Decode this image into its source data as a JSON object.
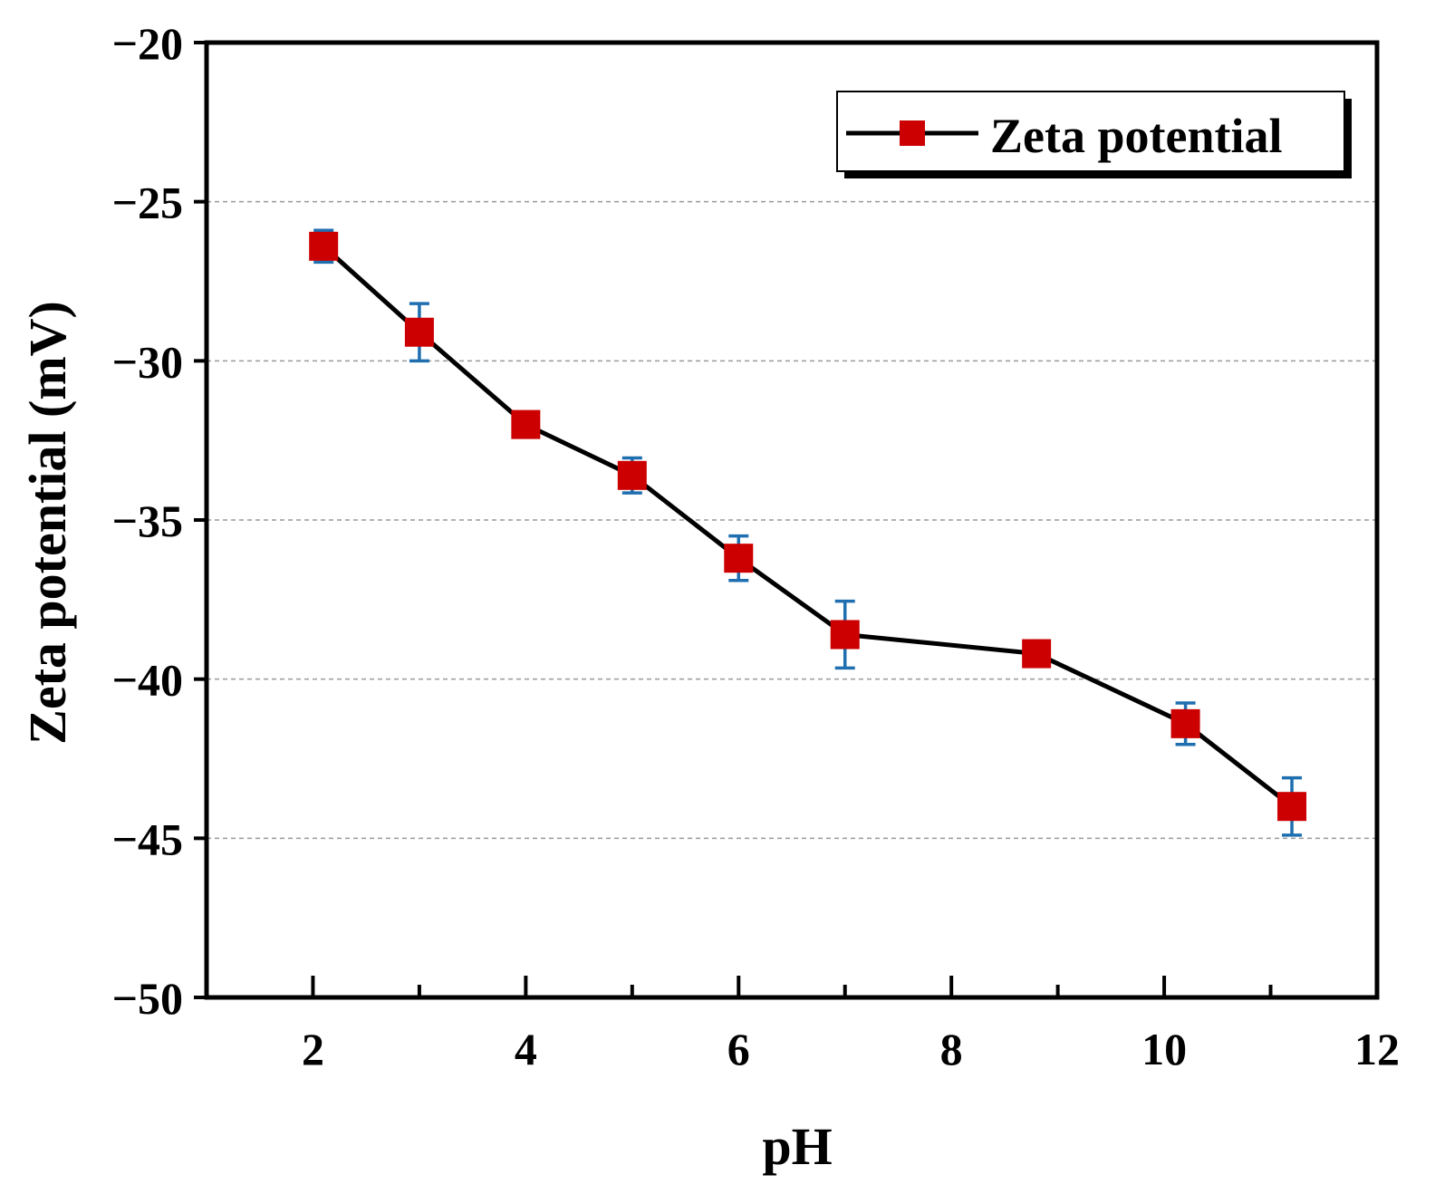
{
  "chart_data": {
    "type": "line",
    "title": "",
    "xlabel": "pH",
    "ylabel": "Zeta potential (mV)",
    "xlim": [
      1,
      12
    ],
    "ylim": [
      -50,
      -20
    ],
    "xticks": [
      2,
      4,
      6,
      8,
      10,
      12
    ],
    "xtick_labels": [
      "2",
      "4",
      "6",
      "8",
      "10",
      "12"
    ],
    "yticks": [
      -50,
      -45,
      -40,
      -35,
      -30,
      -25,
      -20
    ],
    "ytick_labels": [
      "−50",
      "−45",
      "−40",
      "−35",
      "−30",
      "−25",
      "−20"
    ],
    "grid": "horizontal dashed",
    "legend_position": "top-right",
    "series": [
      {
        "name": "Zeta potential",
        "x": [
          2.1,
          3.0,
          4.0,
          5.0,
          6.0,
          7.0,
          8.8,
          10.2,
          11.2
        ],
        "y": [
          -26.4,
          -29.1,
          -32.0,
          -33.6,
          -36.2,
          -38.6,
          -39.2,
          -41.4,
          -44.0
        ],
        "error": [
          0.5,
          0.9,
          0.35,
          0.55,
          0.7,
          1.05,
          0.4,
          0.65,
          0.9
        ]
      }
    ]
  },
  "colors": {
    "line": "#000000",
    "marker": "#cc0000",
    "error_bar": "#1f6fb0",
    "grid": "#999999"
  }
}
